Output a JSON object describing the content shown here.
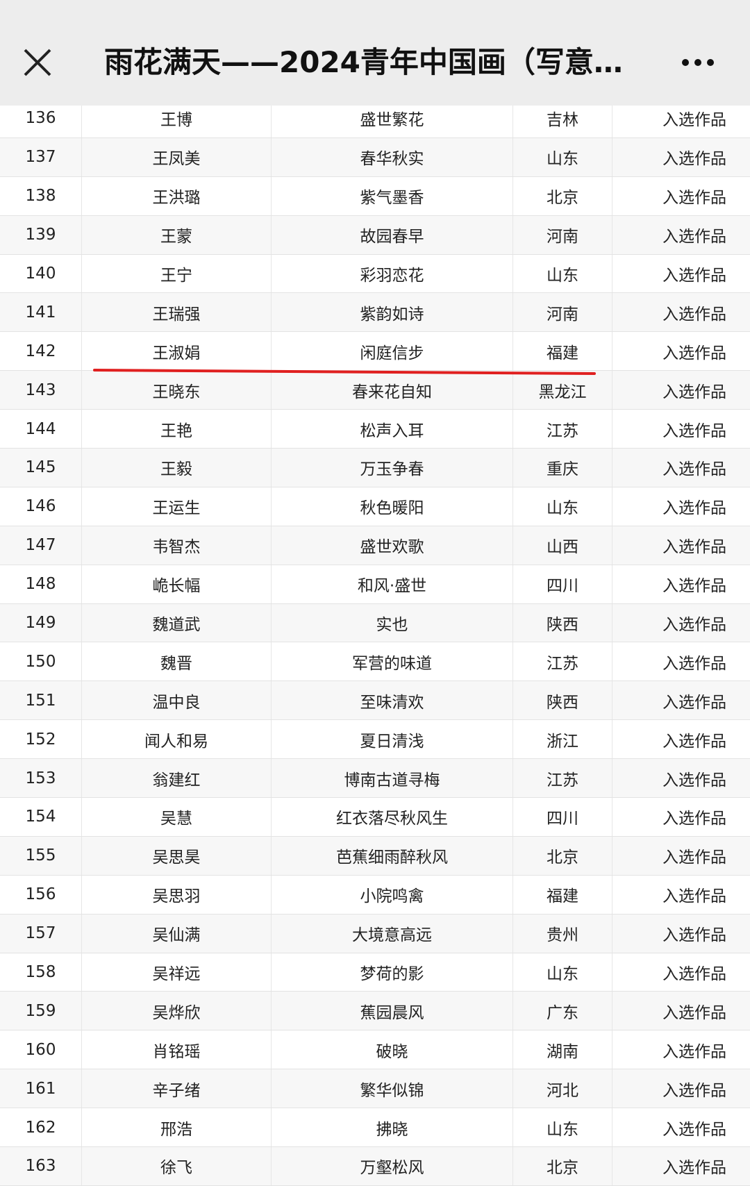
{
  "header": {
    "title": "雨花满天——2024青年中国画（写意…",
    "close_icon": "close-icon",
    "more_icon": "more-icon"
  },
  "highlight_color": "#e02020",
  "rows": [
    {
      "no": "136",
      "name": "王博",
      "work": "盛世繁花",
      "province": "吉林",
      "status": "入选作品"
    },
    {
      "no": "137",
      "name": "王凤美",
      "work": "春华秋实",
      "province": "山东",
      "status": "入选作品"
    },
    {
      "no": "138",
      "name": "王洪璐",
      "work": "紫气墨香",
      "province": "北京",
      "status": "入选作品"
    },
    {
      "no": "139",
      "name": "王蒙",
      "work": "故园春早",
      "province": "河南",
      "status": "入选作品"
    },
    {
      "no": "140",
      "name": "王宁",
      "work": "彩羽恋花",
      "province": "山东",
      "status": "入选作品"
    },
    {
      "no": "141",
      "name": "王瑞强",
      "work": "紫韵如诗",
      "province": "河南",
      "status": "入选作品"
    },
    {
      "no": "142",
      "name": "王淑娟",
      "work": "闲庭信步",
      "province": "福建",
      "status": "入选作品"
    },
    {
      "no": "143",
      "name": "王晓东",
      "work": "春来花自知",
      "province": "黑龙江",
      "status": "入选作品"
    },
    {
      "no": "144",
      "name": "王艳",
      "work": "松声入耳",
      "province": "江苏",
      "status": "入选作品"
    },
    {
      "no": "145",
      "name": "王毅",
      "work": "万玉争春",
      "province": "重庆",
      "status": "入选作品"
    },
    {
      "no": "146",
      "name": "王运生",
      "work": "秋色暖阳",
      "province": "山东",
      "status": "入选作品"
    },
    {
      "no": "147",
      "name": "韦智杰",
      "work": "盛世欢歌",
      "province": "山西",
      "status": "入选作品"
    },
    {
      "no": "148",
      "name": "峗长幅",
      "work": "和风·盛世",
      "province": "四川",
      "status": "入选作品"
    },
    {
      "no": "149",
      "name": "魏道武",
      "work": "实也",
      "province": "陕西",
      "status": "入选作品"
    },
    {
      "no": "150",
      "name": "魏晋",
      "work": "军营的味道",
      "province": "江苏",
      "status": "入选作品"
    },
    {
      "no": "151",
      "name": "温中良",
      "work": "至味清欢",
      "province": "陕西",
      "status": "入选作品"
    },
    {
      "no": "152",
      "name": "闻人和易",
      "work": "夏日清浅",
      "province": "浙江",
      "status": "入选作品"
    },
    {
      "no": "153",
      "name": "翁建红",
      "work": "博南古道寻梅",
      "province": "江苏",
      "status": "入选作品"
    },
    {
      "no": "154",
      "name": "吴慧",
      "work": "红衣落尽秋风生",
      "province": "四川",
      "status": "入选作品"
    },
    {
      "no": "155",
      "name": "吴思昊",
      "work": "芭蕉细雨醉秋风",
      "province": "北京",
      "status": "入选作品"
    },
    {
      "no": "156",
      "name": "吴思羽",
      "work": "小院鸣禽",
      "province": "福建",
      "status": "入选作品"
    },
    {
      "no": "157",
      "name": "吴仙满",
      "work": "大境意高远",
      "province": "贵州",
      "status": "入选作品"
    },
    {
      "no": "158",
      "name": "吴祥远",
      "work": "梦荷的影",
      "province": "山东",
      "status": "入选作品"
    },
    {
      "no": "159",
      "name": "吴烨欣",
      "work": "蕉园晨风",
      "province": "广东",
      "status": "入选作品"
    },
    {
      "no": "160",
      "name": "肖铭瑶",
      "work": "破晓",
      "province": "湖南",
      "status": "入选作品"
    },
    {
      "no": "161",
      "name": "辛子绪",
      "work": "繁华似锦",
      "province": "河北",
      "status": "入选作品"
    },
    {
      "no": "162",
      "name": "邢浩",
      "work": "拂晓",
      "province": "山东",
      "status": "入选作品"
    },
    {
      "no": "163",
      "name": "徐飞",
      "work": "万壑松风",
      "province": "北京",
      "status": "入选作品"
    }
  ]
}
